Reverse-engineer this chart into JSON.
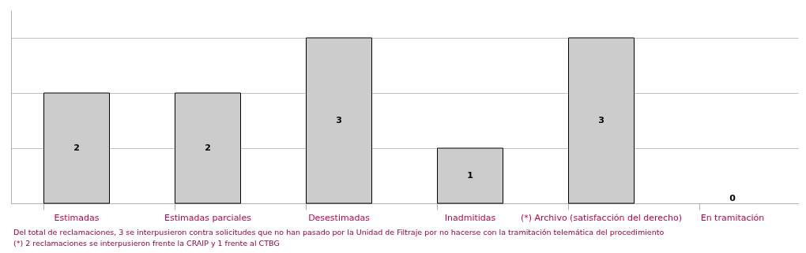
{
  "chart_data": {
    "type": "bar",
    "categories": [
      "Estimadas",
      "Estimadas parciales",
      "Desestimadas",
      "Inadmitidas",
      "(*) Archivo (satisfacción del derecho)",
      "En tramitación"
    ],
    "values": [
      2,
      2,
      3,
      1,
      3,
      0
    ],
    "color": "#cccccc",
    "ylim": [
      0,
      3.5
    ],
    "yticks": [
      {
        "value": 0,
        "label": null
      },
      {
        "value": 1,
        "label": null
      },
      {
        "value": 2,
        "label": null
      },
      {
        "value": 3,
        "label": null
      }
    ],
    "tick_labels": "x",
    "grid": "y",
    "data_labels": true,
    "annotations": [
      "Del total de reclamaciones, 3 se interpusieron contra solicitudes que no han pasado por la Unidad de Filtraje por no hacerse con la tramitación telemática del procedimiento",
      "(*) 2 reclamaciones se interpusieron frente la CRAIP y 1 frente al CTBG"
    ]
  }
}
